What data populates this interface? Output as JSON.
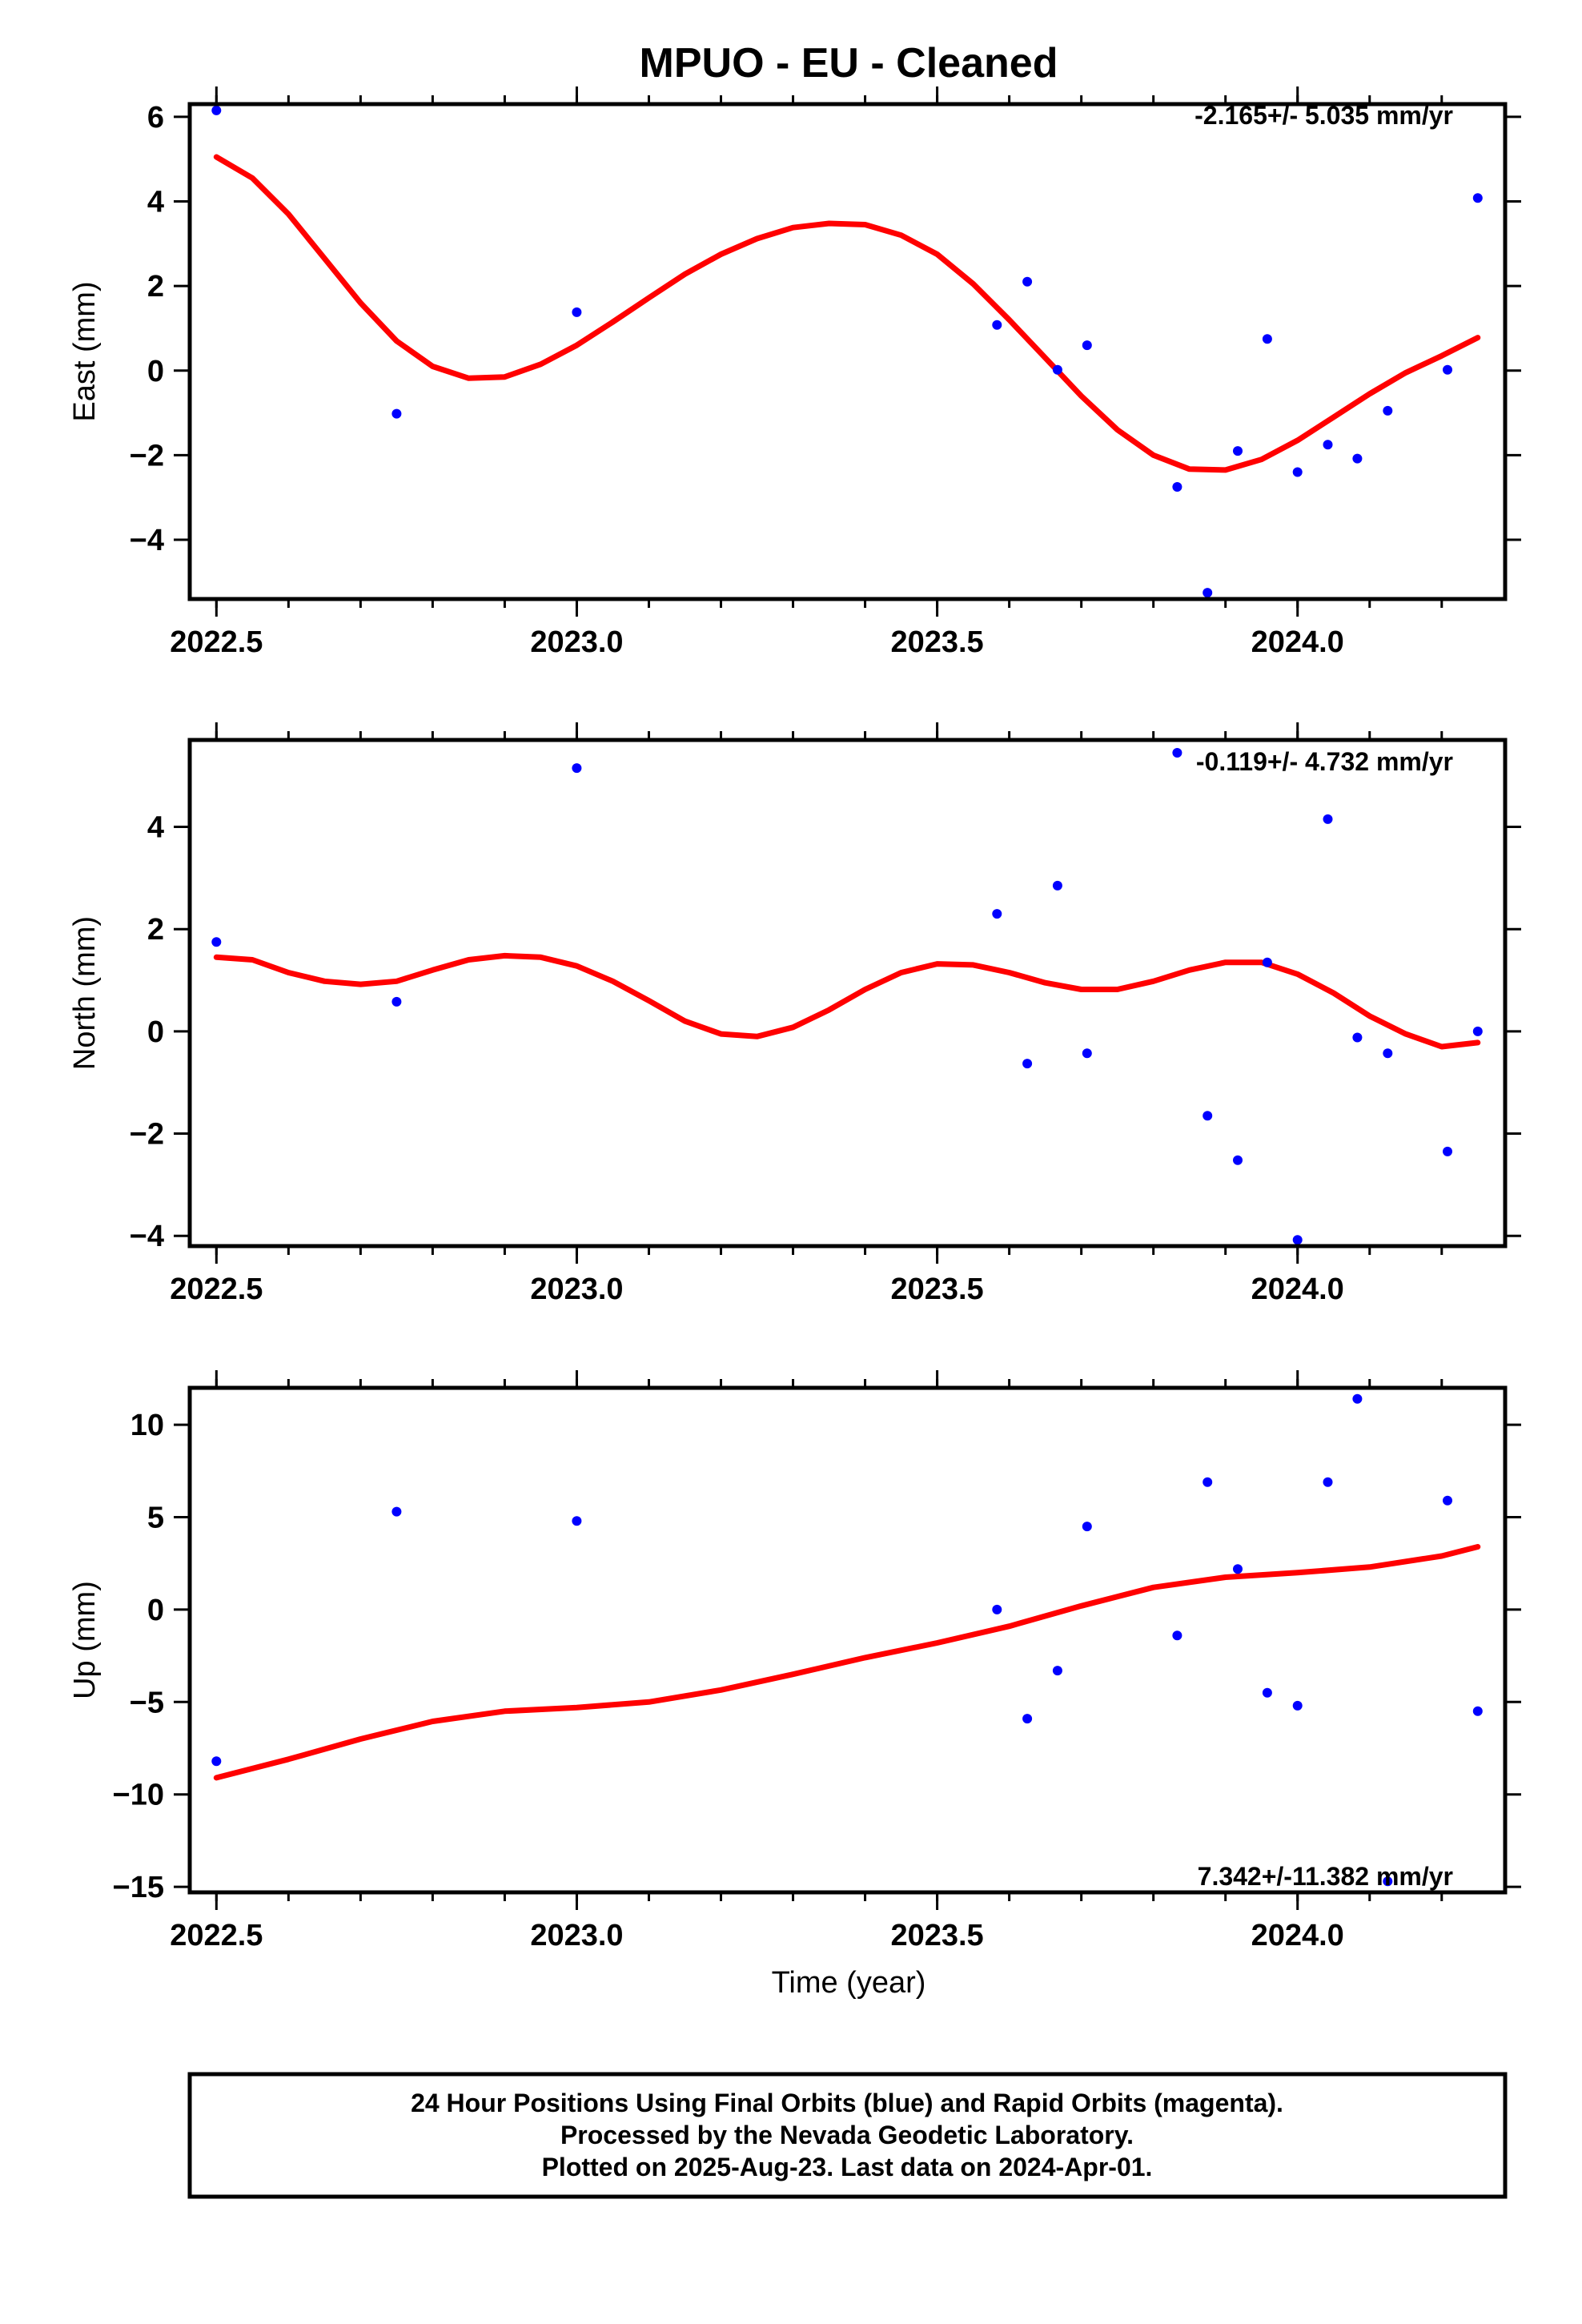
{
  "title": "MPUO  - EU - Cleaned",
  "xlabel": "Time (year)",
  "colors": {
    "data_points": "#0000ff",
    "fit_line": "#ff0000"
  },
  "chart_data": [
    {
      "type": "scatter",
      "ylabel": "East (mm)",
      "rate_text": "-2.165+/- 5.035 mm/yr",
      "xlim": [
        2022.463,
        2024.288
      ],
      "ylim": [
        -5.4,
        6.3
      ],
      "xticks": [
        2022.5,
        2023.0,
        2023.5,
        2024.0
      ],
      "xtick_labels": [
        "2022.5",
        "2023.0",
        "2023.5",
        "2024.0"
      ],
      "yticks": [
        -4,
        -2,
        0,
        2,
        4,
        6
      ],
      "ytick_labels": [
        "−4",
        "−2",
        "0",
        "2",
        "4",
        "6"
      ],
      "points": [
        [
          2022.5,
          6.15
        ],
        [
          2022.75,
          -1.02
        ],
        [
          2023.0,
          1.38
        ],
        [
          2023.583,
          1.08
        ],
        [
          2023.625,
          2.1
        ],
        [
          2023.667,
          0.02
        ],
        [
          2023.708,
          0.6
        ],
        [
          2023.833,
          -2.75
        ],
        [
          2023.875,
          -5.25
        ],
        [
          2023.917,
          -1.9
        ],
        [
          2023.958,
          0.75
        ],
        [
          2024.0,
          -2.4
        ],
        [
          2024.042,
          -1.75
        ],
        [
          2024.083,
          -2.08
        ],
        [
          2024.125,
          -0.95
        ],
        [
          2024.208,
          0.02
        ],
        [
          2024.25,
          4.08
        ]
      ],
      "fit": [
        [
          2022.5,
          5.05
        ],
        [
          2022.55,
          4.55
        ],
        [
          2022.6,
          3.7
        ],
        [
          2022.65,
          2.65
        ],
        [
          2022.7,
          1.6
        ],
        [
          2022.75,
          0.7
        ],
        [
          2022.8,
          0.1
        ],
        [
          2022.85,
          -0.18
        ],
        [
          2022.9,
          -0.15
        ],
        [
          2022.95,
          0.15
        ],
        [
          2023.0,
          0.6
        ],
        [
          2023.05,
          1.15
        ],
        [
          2023.1,
          1.72
        ],
        [
          2023.15,
          2.28
        ],
        [
          2023.2,
          2.75
        ],
        [
          2023.25,
          3.12
        ],
        [
          2023.3,
          3.38
        ],
        [
          2023.35,
          3.48
        ],
        [
          2023.4,
          3.45
        ],
        [
          2023.45,
          3.2
        ],
        [
          2023.5,
          2.75
        ],
        [
          2023.55,
          2.05
        ],
        [
          2023.6,
          1.2
        ],
        [
          2023.65,
          0.3
        ],
        [
          2023.7,
          -0.6
        ],
        [
          2023.75,
          -1.4
        ],
        [
          2023.8,
          -2.0
        ],
        [
          2023.85,
          -2.33
        ],
        [
          2023.9,
          -2.35
        ],
        [
          2023.95,
          -2.1
        ],
        [
          2024.0,
          -1.65
        ],
        [
          2024.05,
          -1.1
        ],
        [
          2024.1,
          -0.55
        ],
        [
          2024.15,
          -0.05
        ],
        [
          2024.2,
          0.35
        ],
        [
          2024.25,
          0.78
        ]
      ]
    },
    {
      "type": "scatter",
      "ylabel": "North (mm)",
      "rate_text": "-0.119+/- 4.732 mm/yr",
      "xlim": [
        2022.463,
        2024.288
      ],
      "ylim": [
        -4.2,
        5.7
      ],
      "xticks": [
        2022.5,
        2023.0,
        2023.5,
        2024.0
      ],
      "xtick_labels": [
        "2022.5",
        "2023.0",
        "2023.5",
        "2024.0"
      ],
      "yticks": [
        -4,
        -2,
        0,
        2,
        4
      ],
      "ytick_labels": [
        "−4",
        "−2",
        "0",
        "2",
        "4"
      ],
      "points": [
        [
          2022.5,
          1.75
        ],
        [
          2022.75,
          0.58
        ],
        [
          2023.0,
          5.15
        ],
        [
          2023.583,
          2.3
        ],
        [
          2023.625,
          -0.63
        ],
        [
          2023.667,
          2.85
        ],
        [
          2023.708,
          -0.43
        ],
        [
          2023.833,
          5.45
        ],
        [
          2023.875,
          -1.65
        ],
        [
          2023.917,
          -2.52
        ],
        [
          2023.958,
          1.35
        ],
        [
          2024.0,
          -4.08
        ],
        [
          2024.042,
          4.15
        ],
        [
          2024.083,
          -0.12
        ],
        [
          2024.125,
          -0.43
        ],
        [
          2024.208,
          -2.35
        ],
        [
          2024.25,
          0.0
        ]
      ],
      "fit": [
        [
          2022.5,
          1.45
        ],
        [
          2022.55,
          1.4
        ],
        [
          2022.6,
          1.15
        ],
        [
          2022.65,
          0.98
        ],
        [
          2022.7,
          0.92
        ],
        [
          2022.75,
          0.98
        ],
        [
          2022.8,
          1.2
        ],
        [
          2022.85,
          1.4
        ],
        [
          2022.9,
          1.48
        ],
        [
          2022.95,
          1.45
        ],
        [
          2023.0,
          1.28
        ],
        [
          2023.05,
          0.98
        ],
        [
          2023.1,
          0.6
        ],
        [
          2023.15,
          0.2
        ],
        [
          2023.2,
          -0.05
        ],
        [
          2023.25,
          -0.1
        ],
        [
          2023.3,
          0.08
        ],
        [
          2023.35,
          0.42
        ],
        [
          2023.4,
          0.82
        ],
        [
          2023.45,
          1.15
        ],
        [
          2023.5,
          1.32
        ],
        [
          2023.55,
          1.3
        ],
        [
          2023.6,
          1.15
        ],
        [
          2023.65,
          0.95
        ],
        [
          2023.7,
          0.82
        ],
        [
          2023.75,
          0.82
        ],
        [
          2023.8,
          0.98
        ],
        [
          2023.85,
          1.2
        ],
        [
          2023.9,
          1.35
        ],
        [
          2023.95,
          1.35
        ],
        [
          2024.0,
          1.12
        ],
        [
          2024.05,
          0.75
        ],
        [
          2024.1,
          0.3
        ],
        [
          2024.15,
          -0.05
        ],
        [
          2024.2,
          -0.3
        ],
        [
          2024.25,
          -0.22
        ]
      ]
    },
    {
      "type": "scatter",
      "ylabel": "Up (mm)",
      "rate_text": "7.342+/-11.382 mm/yr",
      "xlim": [
        2022.463,
        2024.288
      ],
      "ylim": [
        -15.3,
        12.0
      ],
      "xticks": [
        2022.5,
        2023.0,
        2023.5,
        2024.0
      ],
      "xtick_labels": [
        "2022.5",
        "2023.0",
        "2023.5",
        "2024.0"
      ],
      "yticks": [
        -15,
        -10,
        -5,
        0,
        5,
        10
      ],
      "ytick_labels": [
        "−15",
        "−10",
        "−5",
        "0",
        "5",
        "10"
      ],
      "points": [
        [
          2022.5,
          -8.2
        ],
        [
          2022.75,
          5.3
        ],
        [
          2023.0,
          4.8
        ],
        [
          2023.583,
          0.0
        ],
        [
          2023.625,
          -5.9
        ],
        [
          2023.667,
          -3.3
        ],
        [
          2023.708,
          4.5
        ],
        [
          2023.833,
          -1.4
        ],
        [
          2023.875,
          6.9
        ],
        [
          2023.917,
          2.2
        ],
        [
          2023.958,
          -4.5
        ],
        [
          2024.0,
          -5.2
        ],
        [
          2024.042,
          6.9
        ],
        [
          2024.083,
          11.4
        ],
        [
          2024.125,
          -14.7
        ],
        [
          2024.208,
          5.9
        ],
        [
          2024.25,
          -5.5
        ]
      ],
      "fit": [
        [
          2022.5,
          -9.1
        ],
        [
          2022.6,
          -8.1
        ],
        [
          2022.7,
          -7.0
        ],
        [
          2022.8,
          -6.05
        ],
        [
          2022.9,
          -5.5
        ],
        [
          2023.0,
          -5.3
        ],
        [
          2023.1,
          -5.0
        ],
        [
          2023.2,
          -4.35
        ],
        [
          2023.3,
          -3.5
        ],
        [
          2023.4,
          -2.6
        ],
        [
          2023.5,
          -1.8
        ],
        [
          2023.6,
          -0.9
        ],
        [
          2023.7,
          0.2
        ],
        [
          2023.8,
          1.2
        ],
        [
          2023.9,
          1.75
        ],
        [
          2024.0,
          2.0
        ],
        [
          2024.1,
          2.3
        ],
        [
          2024.2,
          2.9
        ],
        [
          2024.25,
          3.4
        ]
      ]
    }
  ],
  "footer": {
    "line1": "24 Hour Positions Using Final Orbits (blue) and Rapid Orbits (magenta).",
    "line2": "Processed by the Nevada Geodetic Laboratory.",
    "line3": "Plotted on 2025-Aug-23. Last data on 2024-Apr-01."
  }
}
